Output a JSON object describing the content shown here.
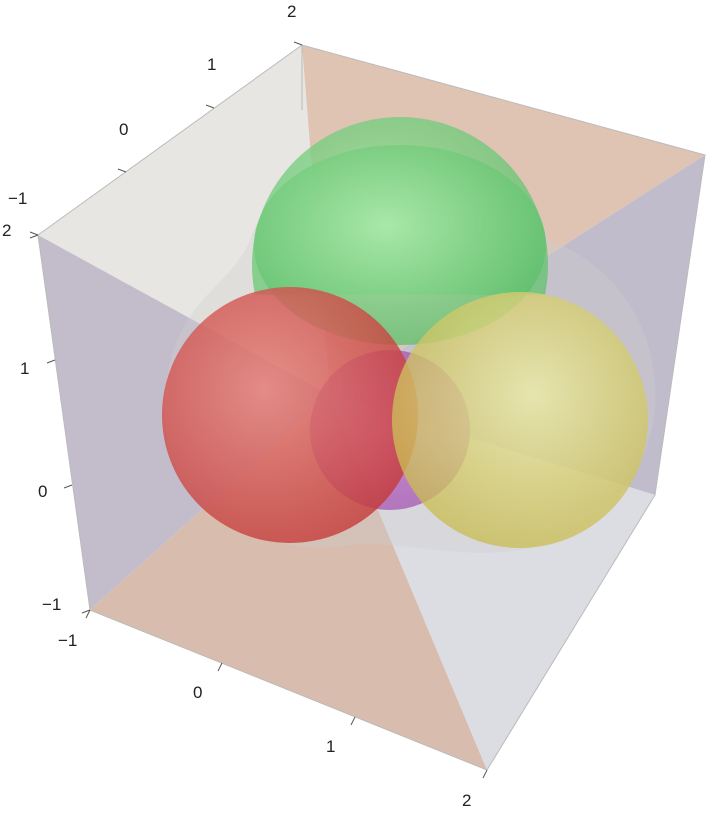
{
  "plot": {
    "axes": {
      "top_edge_ticks": [
        "−1",
        "0",
        "1",
        "2"
      ],
      "left_edge_ticks": [
        "2",
        "1",
        "0",
        "−1"
      ],
      "bottom_edge_ticks": [
        "−1",
        "0",
        "1",
        "2"
      ]
    },
    "colors": {
      "box_gray": "#e8e6e2",
      "box_lavender": "#c3bdcb",
      "box_peach": "#dfc3b3",
      "box_lightgray": "#dcdce3",
      "sphere_green": "#7fd38a",
      "sphere_red": "#d2423f",
      "sphere_yellow": "#d8d060",
      "sphere_purple": "#b45ac0"
    }
  }
}
